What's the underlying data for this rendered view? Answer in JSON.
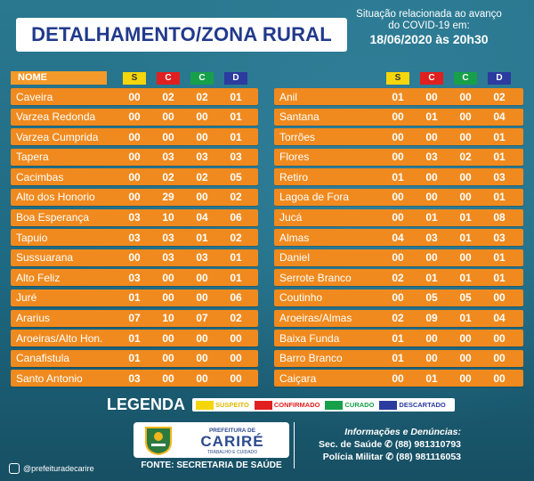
{
  "title": "DETALHAMENTO/ZONA RURAL",
  "situation": {
    "line1": "Situação relacionada ao avanço",
    "line2": "do COVID-19 em:",
    "date": "18/06/2020 às 20h30"
  },
  "headers": {
    "nome": "NOME",
    "s": "S",
    "c": "C",
    "cu": "C",
    "d": "D"
  },
  "colors": {
    "suspeito": "#f5d60a",
    "confirmado": "#e02020",
    "curado": "#17a04a",
    "descartado": "#2b3b9e",
    "row": "#f08a1e"
  },
  "left_rows": [
    [
      "Caveira",
      "00",
      "02",
      "02",
      "01"
    ],
    [
      "Varzea Redonda",
      "00",
      "00",
      "00",
      "01"
    ],
    [
      "Varzea Cumprida",
      "00",
      "00",
      "00",
      "01"
    ],
    [
      "Tapera",
      "00",
      "03",
      "03",
      "03"
    ],
    [
      "Cacimbas",
      "00",
      "02",
      "02",
      "05"
    ],
    [
      "Alto dos Honorio",
      "00",
      "29",
      "00",
      "02"
    ],
    [
      "Boa Esperança",
      "03",
      "10",
      "04",
      "06"
    ],
    [
      "Tapuio",
      "03",
      "03",
      "01",
      "02"
    ],
    [
      "Sussuarana",
      "00",
      "03",
      "03",
      "01"
    ],
    [
      "Alto Feliz",
      "03",
      "00",
      "00",
      "01"
    ],
    [
      "Juré",
      "01",
      "00",
      "00",
      "06"
    ],
    [
      "Ararius",
      "07",
      "10",
      "07",
      "02"
    ],
    [
      "Aroeiras/Alto Hon.",
      "01",
      "00",
      "00",
      "00"
    ],
    [
      "Canafistula",
      "01",
      "00",
      "00",
      "00"
    ],
    [
      "Santo Antonio",
      "03",
      "00",
      "00",
      "00"
    ]
  ],
  "right_rows": [
    [
      "Anil",
      "01",
      "00",
      "00",
      "02"
    ],
    [
      "Santana",
      "00",
      "01",
      "00",
      "04"
    ],
    [
      "Torrões",
      "00",
      "00",
      "00",
      "01"
    ],
    [
      "Flores",
      "00",
      "03",
      "02",
      "01"
    ],
    [
      "Retiro",
      "01",
      "00",
      "00",
      "03"
    ],
    [
      "Lagoa de Fora",
      "00",
      "00",
      "00",
      "01"
    ],
    [
      "Jucá",
      "00",
      "01",
      "01",
      "08"
    ],
    [
      "Almas",
      "04",
      "03",
      "01",
      "03"
    ],
    [
      "Daniel",
      "00",
      "00",
      "00",
      "01"
    ],
    [
      "Serrote Branco",
      "02",
      "01",
      "01",
      "01"
    ],
    [
      "Coutinho",
      "00",
      "05",
      "05",
      "00"
    ],
    [
      "Aroeiras/Almas",
      "02",
      "09",
      "01",
      "04"
    ],
    [
      "Baixa Funda",
      "01",
      "00",
      "00",
      "00"
    ],
    [
      "Barro Branco",
      "01",
      "00",
      "00",
      "00"
    ],
    [
      "Caiçara",
      "00",
      "01",
      "00",
      "00"
    ]
  ],
  "legend": {
    "label": "LEGENDA",
    "items": [
      "SUSPEITO",
      "CONFIRMADO",
      "CURADO",
      "DESCARTADO"
    ]
  },
  "logo": {
    "small": "PREFEITURA DE",
    "big": "CARIRÉ",
    "sub": "TRABALHO E CUIDADO"
  },
  "fonte": "FONTE: SECRETARIA DE SAÚDE",
  "contacts": {
    "heading": "Informações e Denúncias:",
    "line1": "Sec. de Saúde ✆ (88) 981310793",
    "line2": "Polícia Militar ✆ (88) 981116053"
  },
  "instagram": "@prefeituradecarire"
}
